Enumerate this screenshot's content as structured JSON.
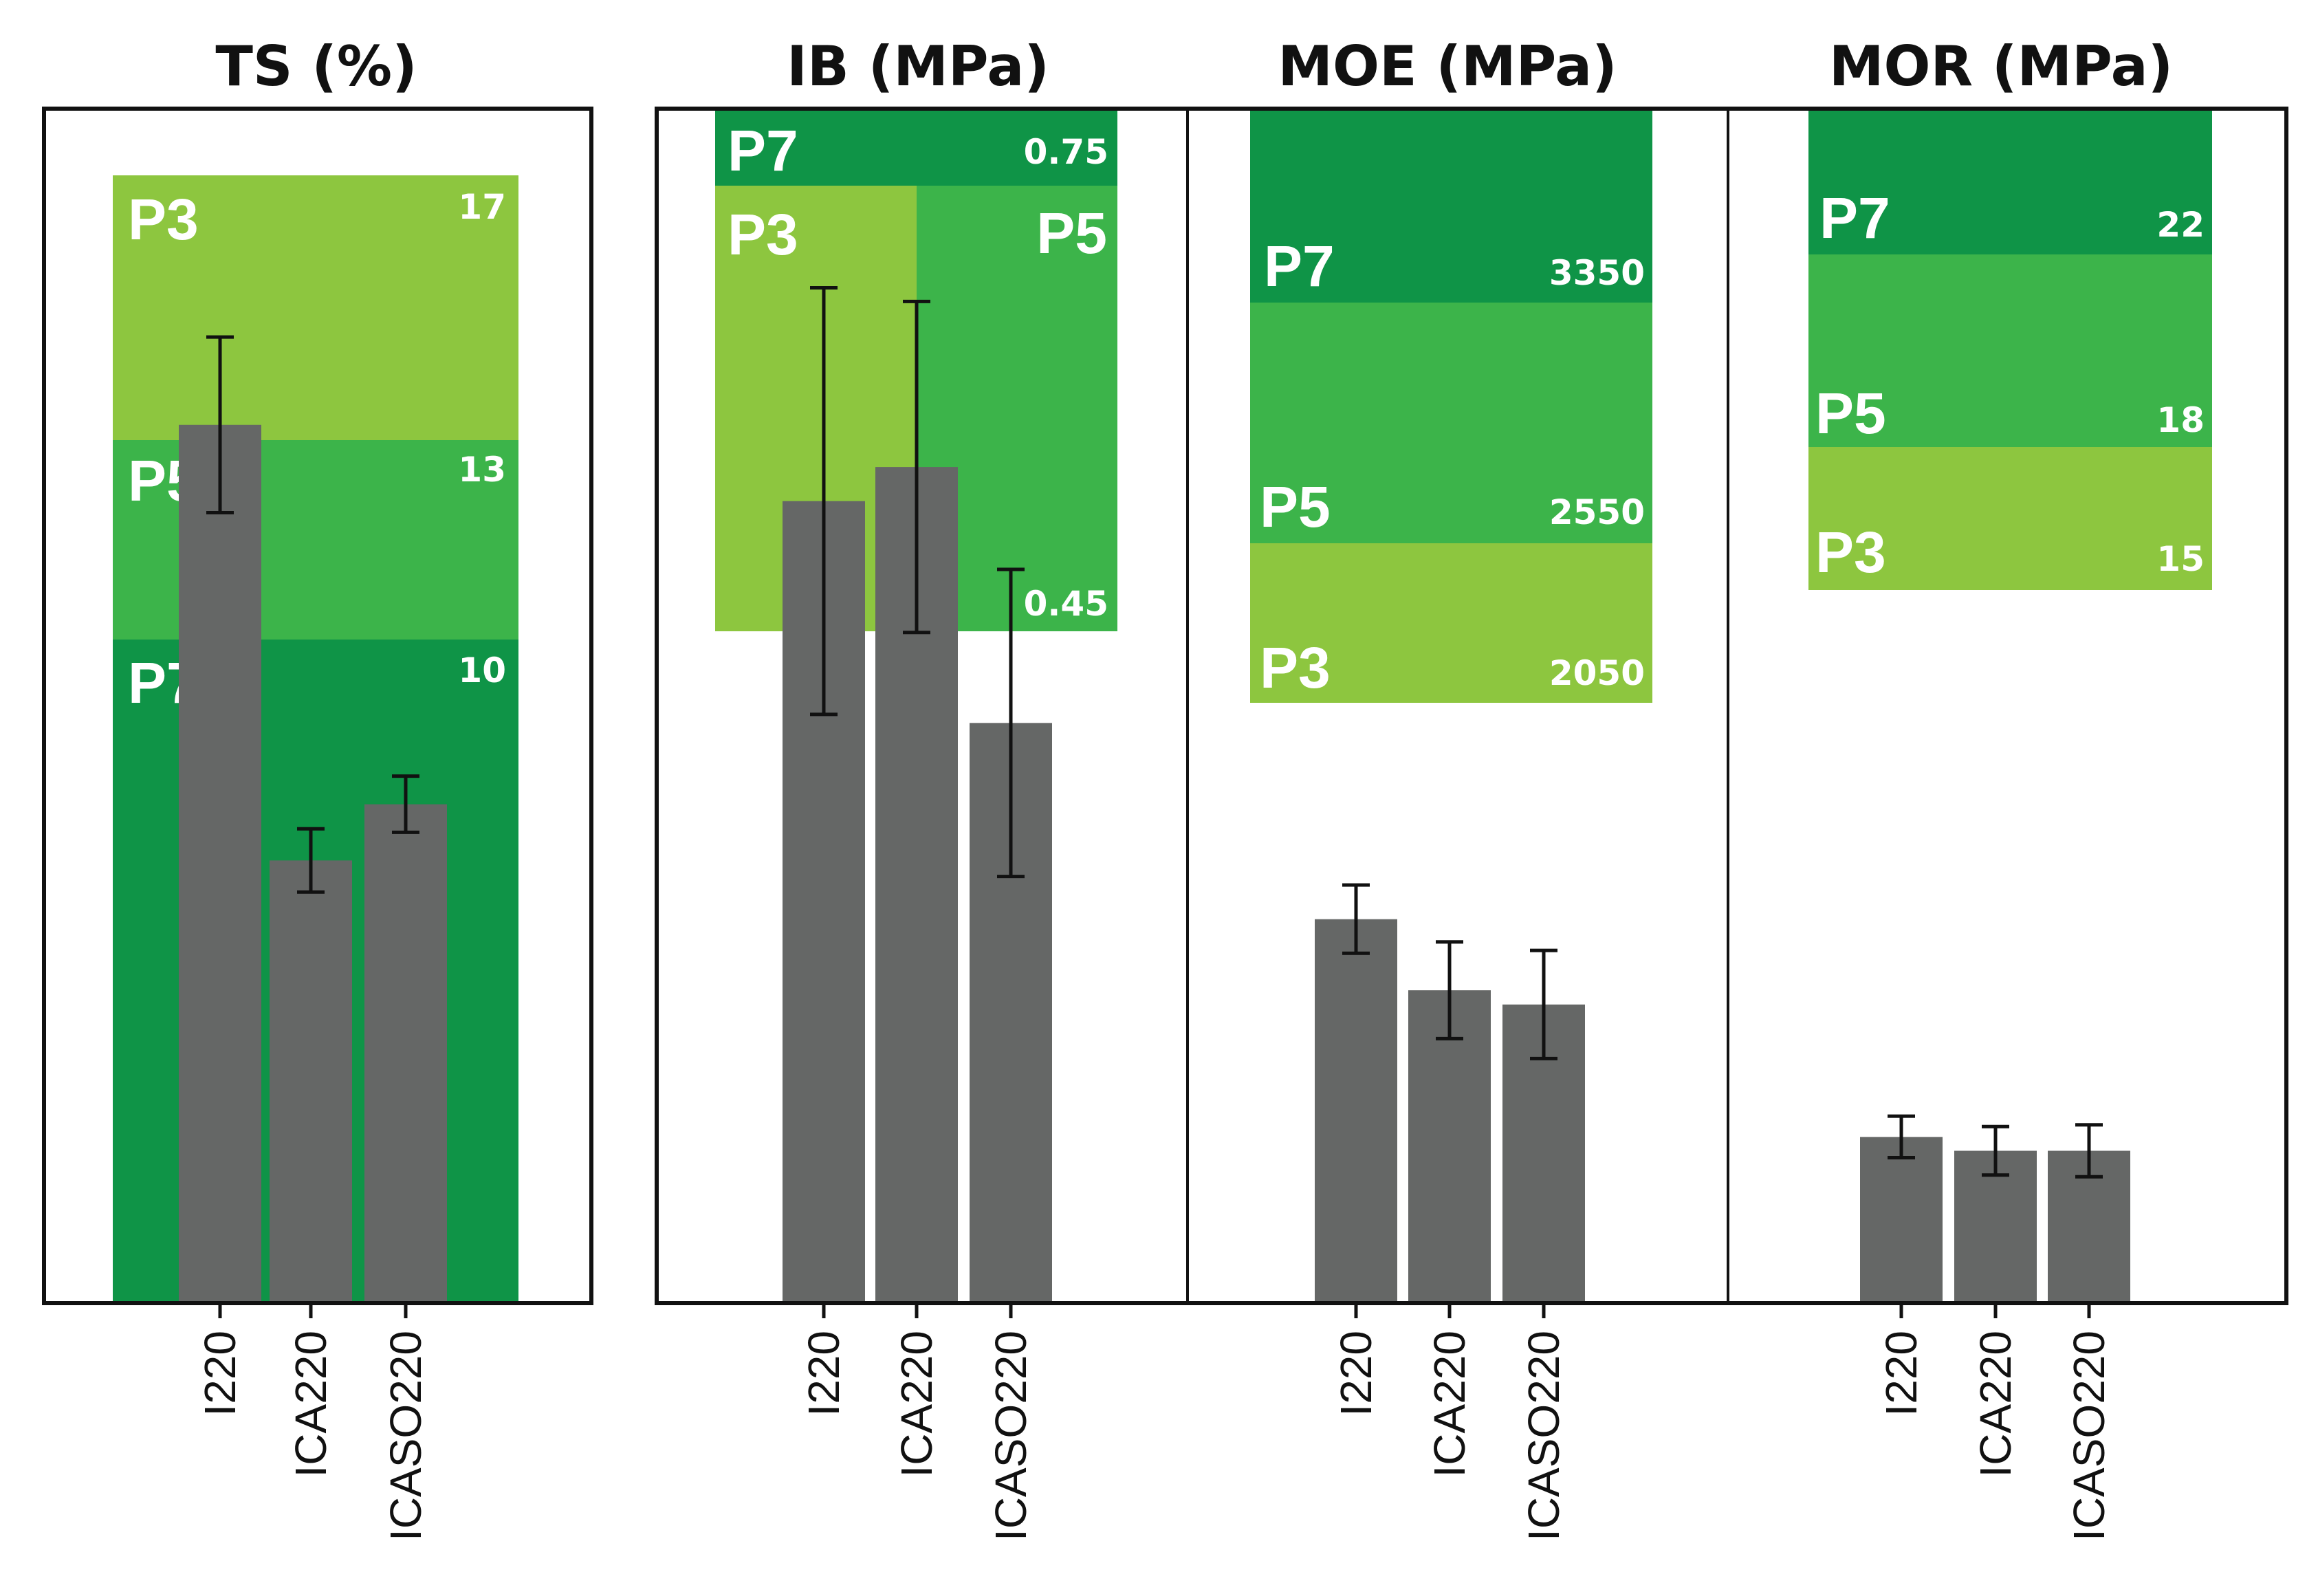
{
  "colors": {
    "P3": "#8dc63f",
    "P5": "#3cb44a",
    "P7": "#0f9447",
    "bar": "#656766",
    "axis": "#111111"
  },
  "chart_data": [
    {
      "type": "bar",
      "title": "TS (%)",
      "categories": [
        "I220",
        "ICA220",
        "ICASO220"
      ],
      "values": [
        12.5,
        6.3,
        7.1
      ],
      "error": [
        1.25,
        0.45,
        0.4
      ],
      "ylim": [
        0,
        17.0
      ],
      "thresholds": [
        {
          "name": "P3",
          "value": "17",
          "from": 13,
          "to": 17
        },
        {
          "name": "P5",
          "value": "13",
          "from": 10,
          "to": 13
        },
        {
          "name": "P7",
          "value": "10",
          "from": 0,
          "to": 10
        }
      ]
    },
    {
      "type": "bar",
      "title": "IB (MPa)",
      "categories": [
        "I220",
        "ICA220",
        "ICASO220"
      ],
      "values": [
        0.47,
        0.49,
        0.34
      ],
      "error": [
        0.125,
        0.097,
        0.09
      ],
      "ylim": [
        0,
        0.7
      ],
      "thresholds": [
        {
          "name": "P7",
          "value": "0.75",
          "from": 0.65,
          "to": 0.7
        },
        {
          "name": "P3",
          "value": "",
          "from": 0.39,
          "to": 0.65
        },
        {
          "name": "P5",
          "value": "0.45",
          "from": 0.39,
          "to": 0.65
        }
      ]
    },
    {
      "type": "bar",
      "title": "MOE (MPa)",
      "categories": [
        "I220",
        "ICA220",
        "ICASO220"
      ],
      "values": [
        1350,
        1100,
        1050
      ],
      "error": [
        120,
        170,
        190
      ],
      "ylim": [
        0,
        4200
      ],
      "thresholds": [
        {
          "name": "P7",
          "value": "3350",
          "from": 3350,
          "to": 4200
        },
        {
          "name": "P5",
          "value": "2550",
          "from": 2550,
          "to": 3350
        },
        {
          "name": "P3",
          "value": "2050",
          "from": 2050,
          "to": 2550
        }
      ]
    },
    {
      "type": "bar",
      "title": "MOR (MPa)",
      "categories": [
        "I220",
        "ICA220",
        "ICASO220"
      ],
      "values": [
        4.8,
        4.4,
        4.4
      ],
      "error": [
        0.6,
        0.7,
        0.75
      ],
      "ylim": [
        0,
        34.5
      ],
      "thresholds": [
        {
          "name": "P7",
          "value": "22",
          "from": 30,
          "to": 34.5
        },
        {
          "name": "P5",
          "value": "18",
          "from": 24,
          "to": 30
        },
        {
          "name": "P3",
          "value": "15",
          "from": 20,
          "to": 24
        }
      ]
    }
  ]
}
